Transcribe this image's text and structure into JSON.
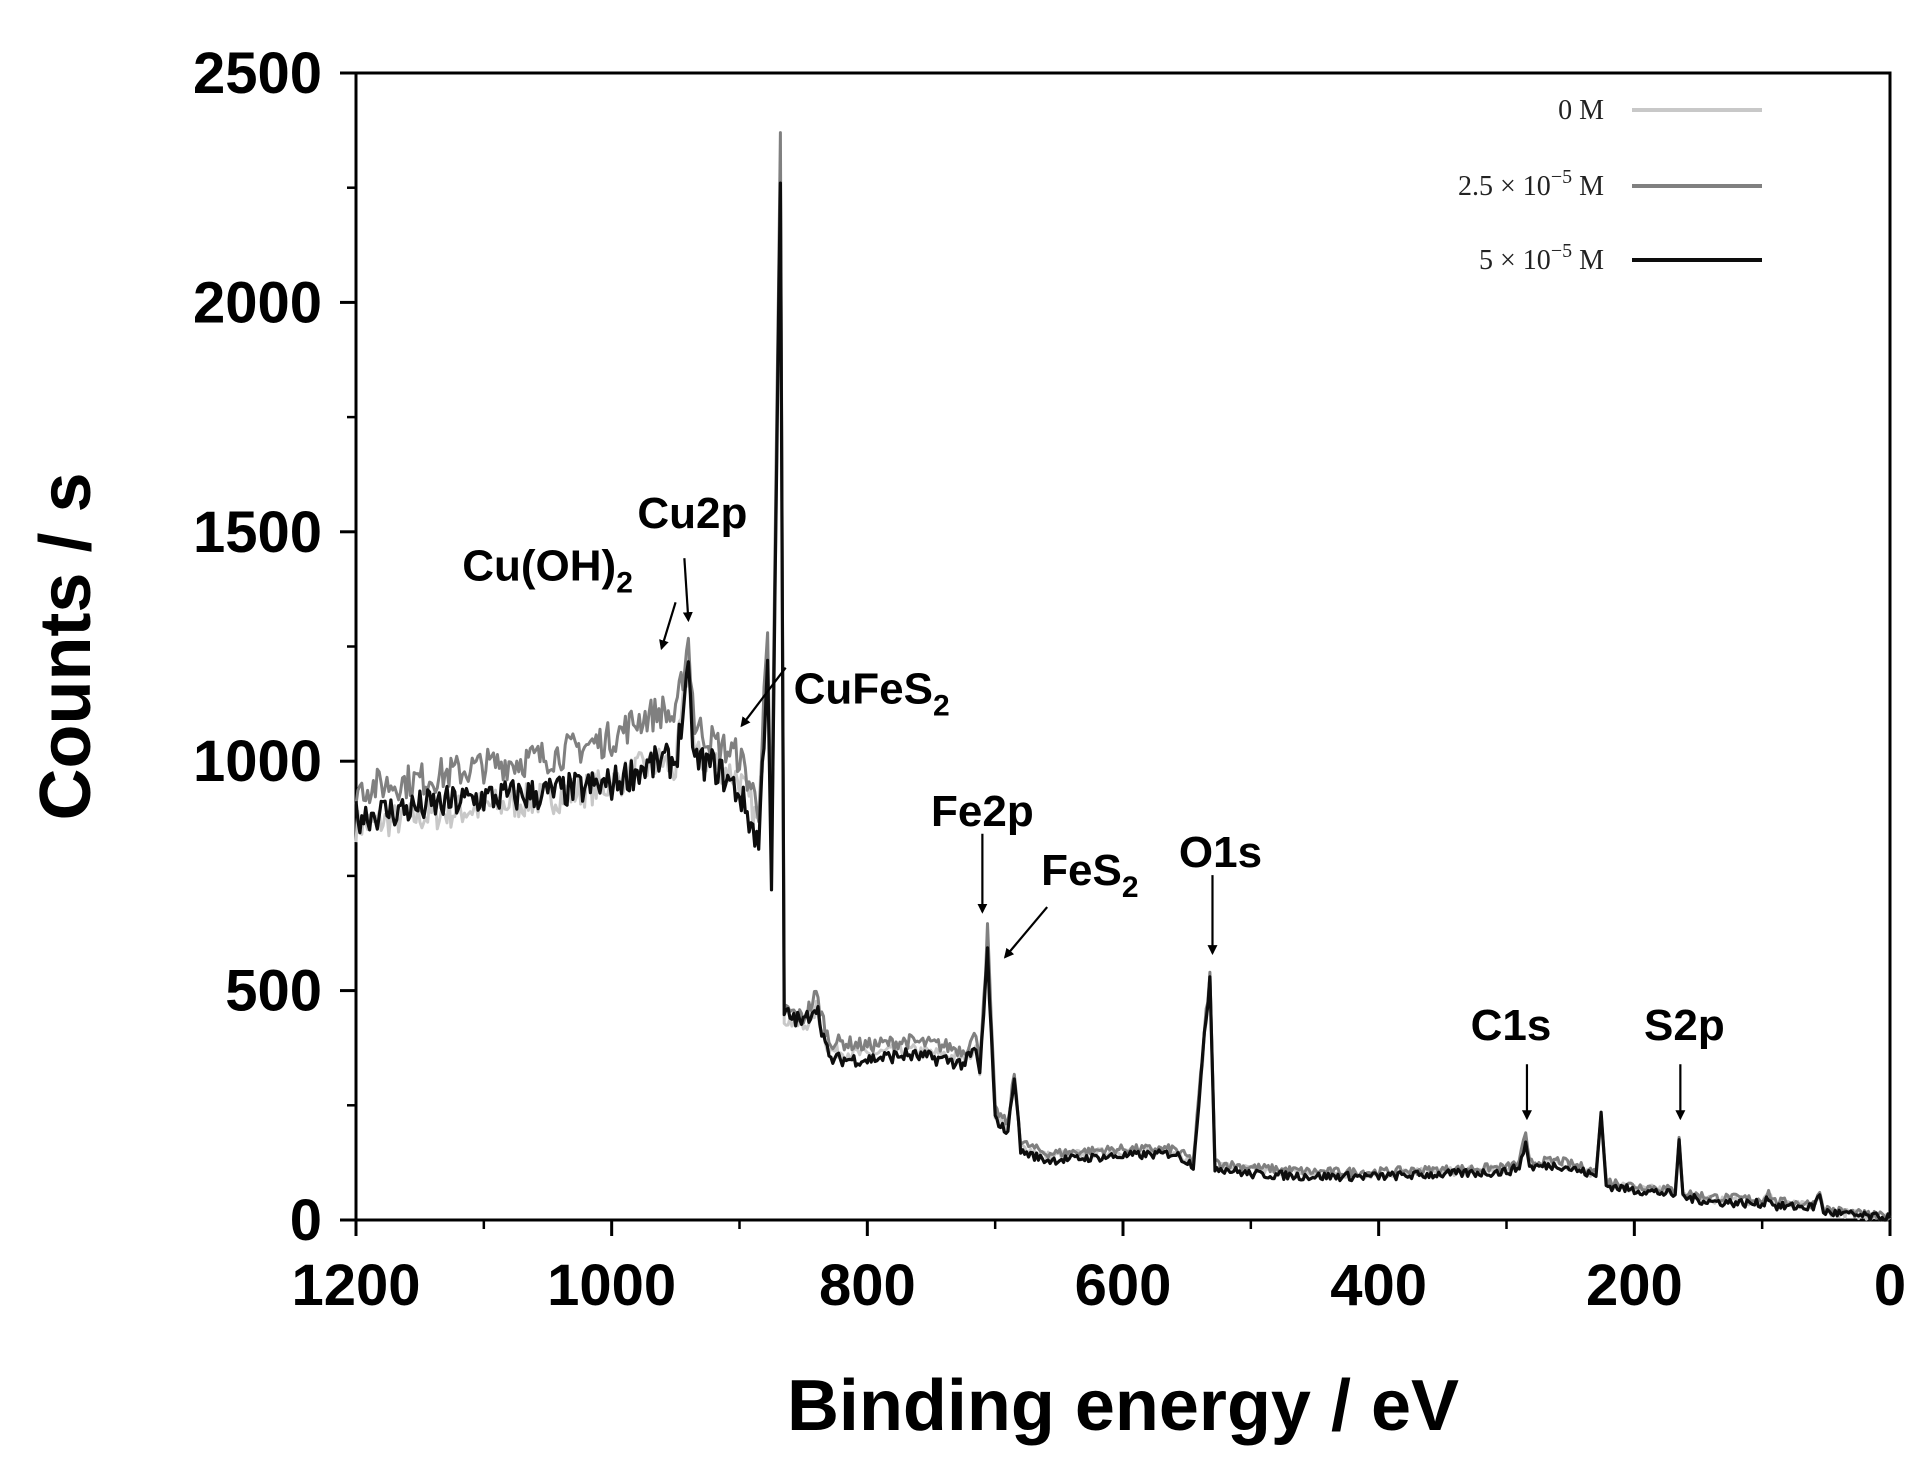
{
  "chart_data": {
    "type": "line",
    "title": "",
    "xlabel": "Binding energy / eV",
    "ylabel": "Counts / s",
    "xlim": [
      1200,
      0
    ],
    "ylim": [
      0,
      2500
    ],
    "x_ticks": [
      1200,
      1000,
      800,
      600,
      400,
      200,
      0
    ],
    "y_ticks": [
      0,
      500,
      1000,
      1500,
      2000,
      2500
    ],
    "legend_position": "top-right",
    "series": [
      {
        "name": "0 M",
        "legend_label": "0 M",
        "color": "#c8c8c8",
        "points": [
          [
            1200,
            860
          ],
          [
            1150,
            880
          ],
          [
            1100,
            900
          ],
          [
            1050,
            920
          ],
          [
            1000,
            950
          ],
          [
            980,
            980
          ],
          [
            960,
            1000
          ],
          [
            950,
            980
          ],
          [
            940,
            1220
          ],
          [
            935,
            1010
          ],
          [
            920,
            1000
          ],
          [
            900,
            960
          ],
          [
            885,
            860
          ],
          [
            878,
            1240
          ],
          [
            875,
            760
          ],
          [
            868,
            2300
          ],
          [
            865,
            440
          ],
          [
            850,
            420
          ],
          [
            840,
            460
          ],
          [
            830,
            370
          ],
          [
            800,
            360
          ],
          [
            770,
            370
          ],
          [
            740,
            360
          ],
          [
            725,
            350
          ],
          [
            715,
            380
          ],
          [
            712,
            330
          ],
          [
            706,
            590
          ],
          [
            700,
            230
          ],
          [
            690,
            200
          ],
          [
            685,
            300
          ],
          [
            680,
            160
          ],
          [
            660,
            140
          ],
          [
            600,
            150
          ],
          [
            560,
            150
          ],
          [
            545,
            125
          ],
          [
            532,
            530
          ],
          [
            528,
            120
          ],
          [
            500,
            110
          ],
          [
            450,
            100
          ],
          [
            400,
            100
          ],
          [
            350,
            105
          ],
          [
            300,
            110
          ],
          [
            290,
            120
          ],
          [
            285,
            180
          ],
          [
            282,
            120
          ],
          [
            260,
            125
          ],
          [
            240,
            110
          ],
          [
            230,
            100
          ],
          [
            226,
            220
          ],
          [
            222,
            80
          ],
          [
            200,
            70
          ],
          [
            180,
            65
          ],
          [
            168,
            60
          ],
          [
            165,
            170
          ],
          [
            162,
            55
          ],
          [
            140,
            45
          ],
          [
            100,
            40
          ],
          [
            95,
            55
          ],
          [
            90,
            35
          ],
          [
            60,
            30
          ],
          [
            55,
            55
          ],
          [
            52,
            20
          ],
          [
            20,
            10
          ],
          [
            0,
            5
          ]
        ]
      },
      {
        "name": "2.5 × 10^-5 M",
        "legend_label": "2.5 × 10",
        "legend_exp": "−5",
        "legend_unit": " M",
        "color": "#808080",
        "points": [
          [
            1200,
            940
          ],
          [
            1150,
            960
          ],
          [
            1100,
            990
          ],
          [
            1050,
            1010
          ],
          [
            1000,
            1050
          ],
          [
            980,
            1090
          ],
          [
            960,
            1110
          ],
          [
            950,
            1090
          ],
          [
            940,
            1265
          ],
          [
            935,
            1080
          ],
          [
            920,
            1040
          ],
          [
            900,
            1010
          ],
          [
            885,
            900
          ],
          [
            878,
            1280
          ],
          [
            875,
            800
          ],
          [
            868,
            2370
          ],
          [
            865,
            460
          ],
          [
            850,
            440
          ],
          [
            840,
            490
          ],
          [
            830,
            390
          ],
          [
            800,
            380
          ],
          [
            770,
            390
          ],
          [
            740,
            380
          ],
          [
            725,
            370
          ],
          [
            715,
            400
          ],
          [
            712,
            350
          ],
          [
            706,
            625
          ],
          [
            700,
            240
          ],
          [
            690,
            210
          ],
          [
            685,
            320
          ],
          [
            680,
            170
          ],
          [
            660,
            145
          ],
          [
            600,
            155
          ],
          [
            560,
            155
          ],
          [
            545,
            130
          ],
          [
            532,
            540
          ],
          [
            528,
            125
          ],
          [
            500,
            115
          ],
          [
            450,
            105
          ],
          [
            400,
            105
          ],
          [
            350,
            110
          ],
          [
            300,
            115
          ],
          [
            290,
            125
          ],
          [
            285,
            190
          ],
          [
            282,
            125
          ],
          [
            260,
            130
          ],
          [
            240,
            115
          ],
          [
            230,
            105
          ],
          [
            226,
            230
          ],
          [
            222,
            85
          ],
          [
            200,
            75
          ],
          [
            180,
            70
          ],
          [
            168,
            65
          ],
          [
            165,
            180
          ],
          [
            162,
            60
          ],
          [
            140,
            50
          ],
          [
            100,
            45
          ],
          [
            95,
            60
          ],
          [
            90,
            40
          ],
          [
            60,
            35
          ],
          [
            55,
            60
          ],
          [
            52,
            25
          ],
          [
            20,
            12
          ],
          [
            0,
            6
          ]
        ]
      },
      {
        "name": "5 × 10^-5 M",
        "legend_label": "5 × 10",
        "legend_exp": "−5",
        "legend_unit": " M",
        "color": "#0d0d0d",
        "points": [
          [
            1200,
            880
          ],
          [
            1150,
            900
          ],
          [
            1100,
            920
          ],
          [
            1050,
            930
          ],
          [
            1000,
            950
          ],
          [
            980,
            980
          ],
          [
            960,
            1000
          ],
          [
            950,
            1000
          ],
          [
            940,
            1180
          ],
          [
            935,
            1000
          ],
          [
            920,
            990
          ],
          [
            900,
            930
          ],
          [
            885,
            820
          ],
          [
            878,
            1220
          ],
          [
            875,
            740
          ],
          [
            868,
            2260
          ],
          [
            865,
            450
          ],
          [
            850,
            430
          ],
          [
            840,
            470
          ],
          [
            830,
            350
          ],
          [
            800,
            350
          ],
          [
            770,
            360
          ],
          [
            740,
            350
          ],
          [
            725,
            340
          ],
          [
            715,
            370
          ],
          [
            712,
            320
          ],
          [
            706,
            580
          ],
          [
            700,
            220
          ],
          [
            690,
            190
          ],
          [
            685,
            320
          ],
          [
            680,
            150
          ],
          [
            660,
            130
          ],
          [
            600,
            140
          ],
          [
            560,
            145
          ],
          [
            545,
            120
          ],
          [
            532,
            530
          ],
          [
            528,
            115
          ],
          [
            500,
            100
          ],
          [
            450,
            95
          ],
          [
            400,
            95
          ],
          [
            350,
            100
          ],
          [
            300,
            105
          ],
          [
            290,
            115
          ],
          [
            285,
            170
          ],
          [
            282,
            115
          ],
          [
            260,
            120
          ],
          [
            240,
            105
          ],
          [
            230,
            95
          ],
          [
            226,
            235
          ],
          [
            222,
            75
          ],
          [
            200,
            65
          ],
          [
            180,
            60
          ],
          [
            168,
            55
          ],
          [
            165,
            175
          ],
          [
            162,
            50
          ],
          [
            140,
            40
          ],
          [
            100,
            35
          ],
          [
            95,
            50
          ],
          [
            90,
            30
          ],
          [
            60,
            28
          ],
          [
            55,
            55
          ],
          [
            52,
            18
          ],
          [
            20,
            8
          ],
          [
            0,
            4
          ]
        ]
      }
    ],
    "annotations": [
      {
        "label": "Cu(OH)",
        "sub": "2",
        "target": [
          950,
          1220
        ]
      },
      {
        "label": "Cu2p",
        "sub": "",
        "target": [
          940,
          1290
        ]
      },
      {
        "label": "CuFeS",
        "sub": "2",
        "target": [
          903,
          1060
        ]
      },
      {
        "label": "Fe2p",
        "sub": "",
        "target": [
          710,
          650
        ]
      },
      {
        "label": "FeS",
        "sub": "2",
        "target": [
          700,
          560
        ]
      },
      {
        "label": "O1s",
        "sub": "",
        "target": [
          530,
          560
        ]
      },
      {
        "label": "C1s",
        "sub": "",
        "target": [
          284,
          200
        ]
      },
      {
        "label": "S2p",
        "sub": "",
        "target": [
          164,
          200
        ]
      }
    ]
  }
}
